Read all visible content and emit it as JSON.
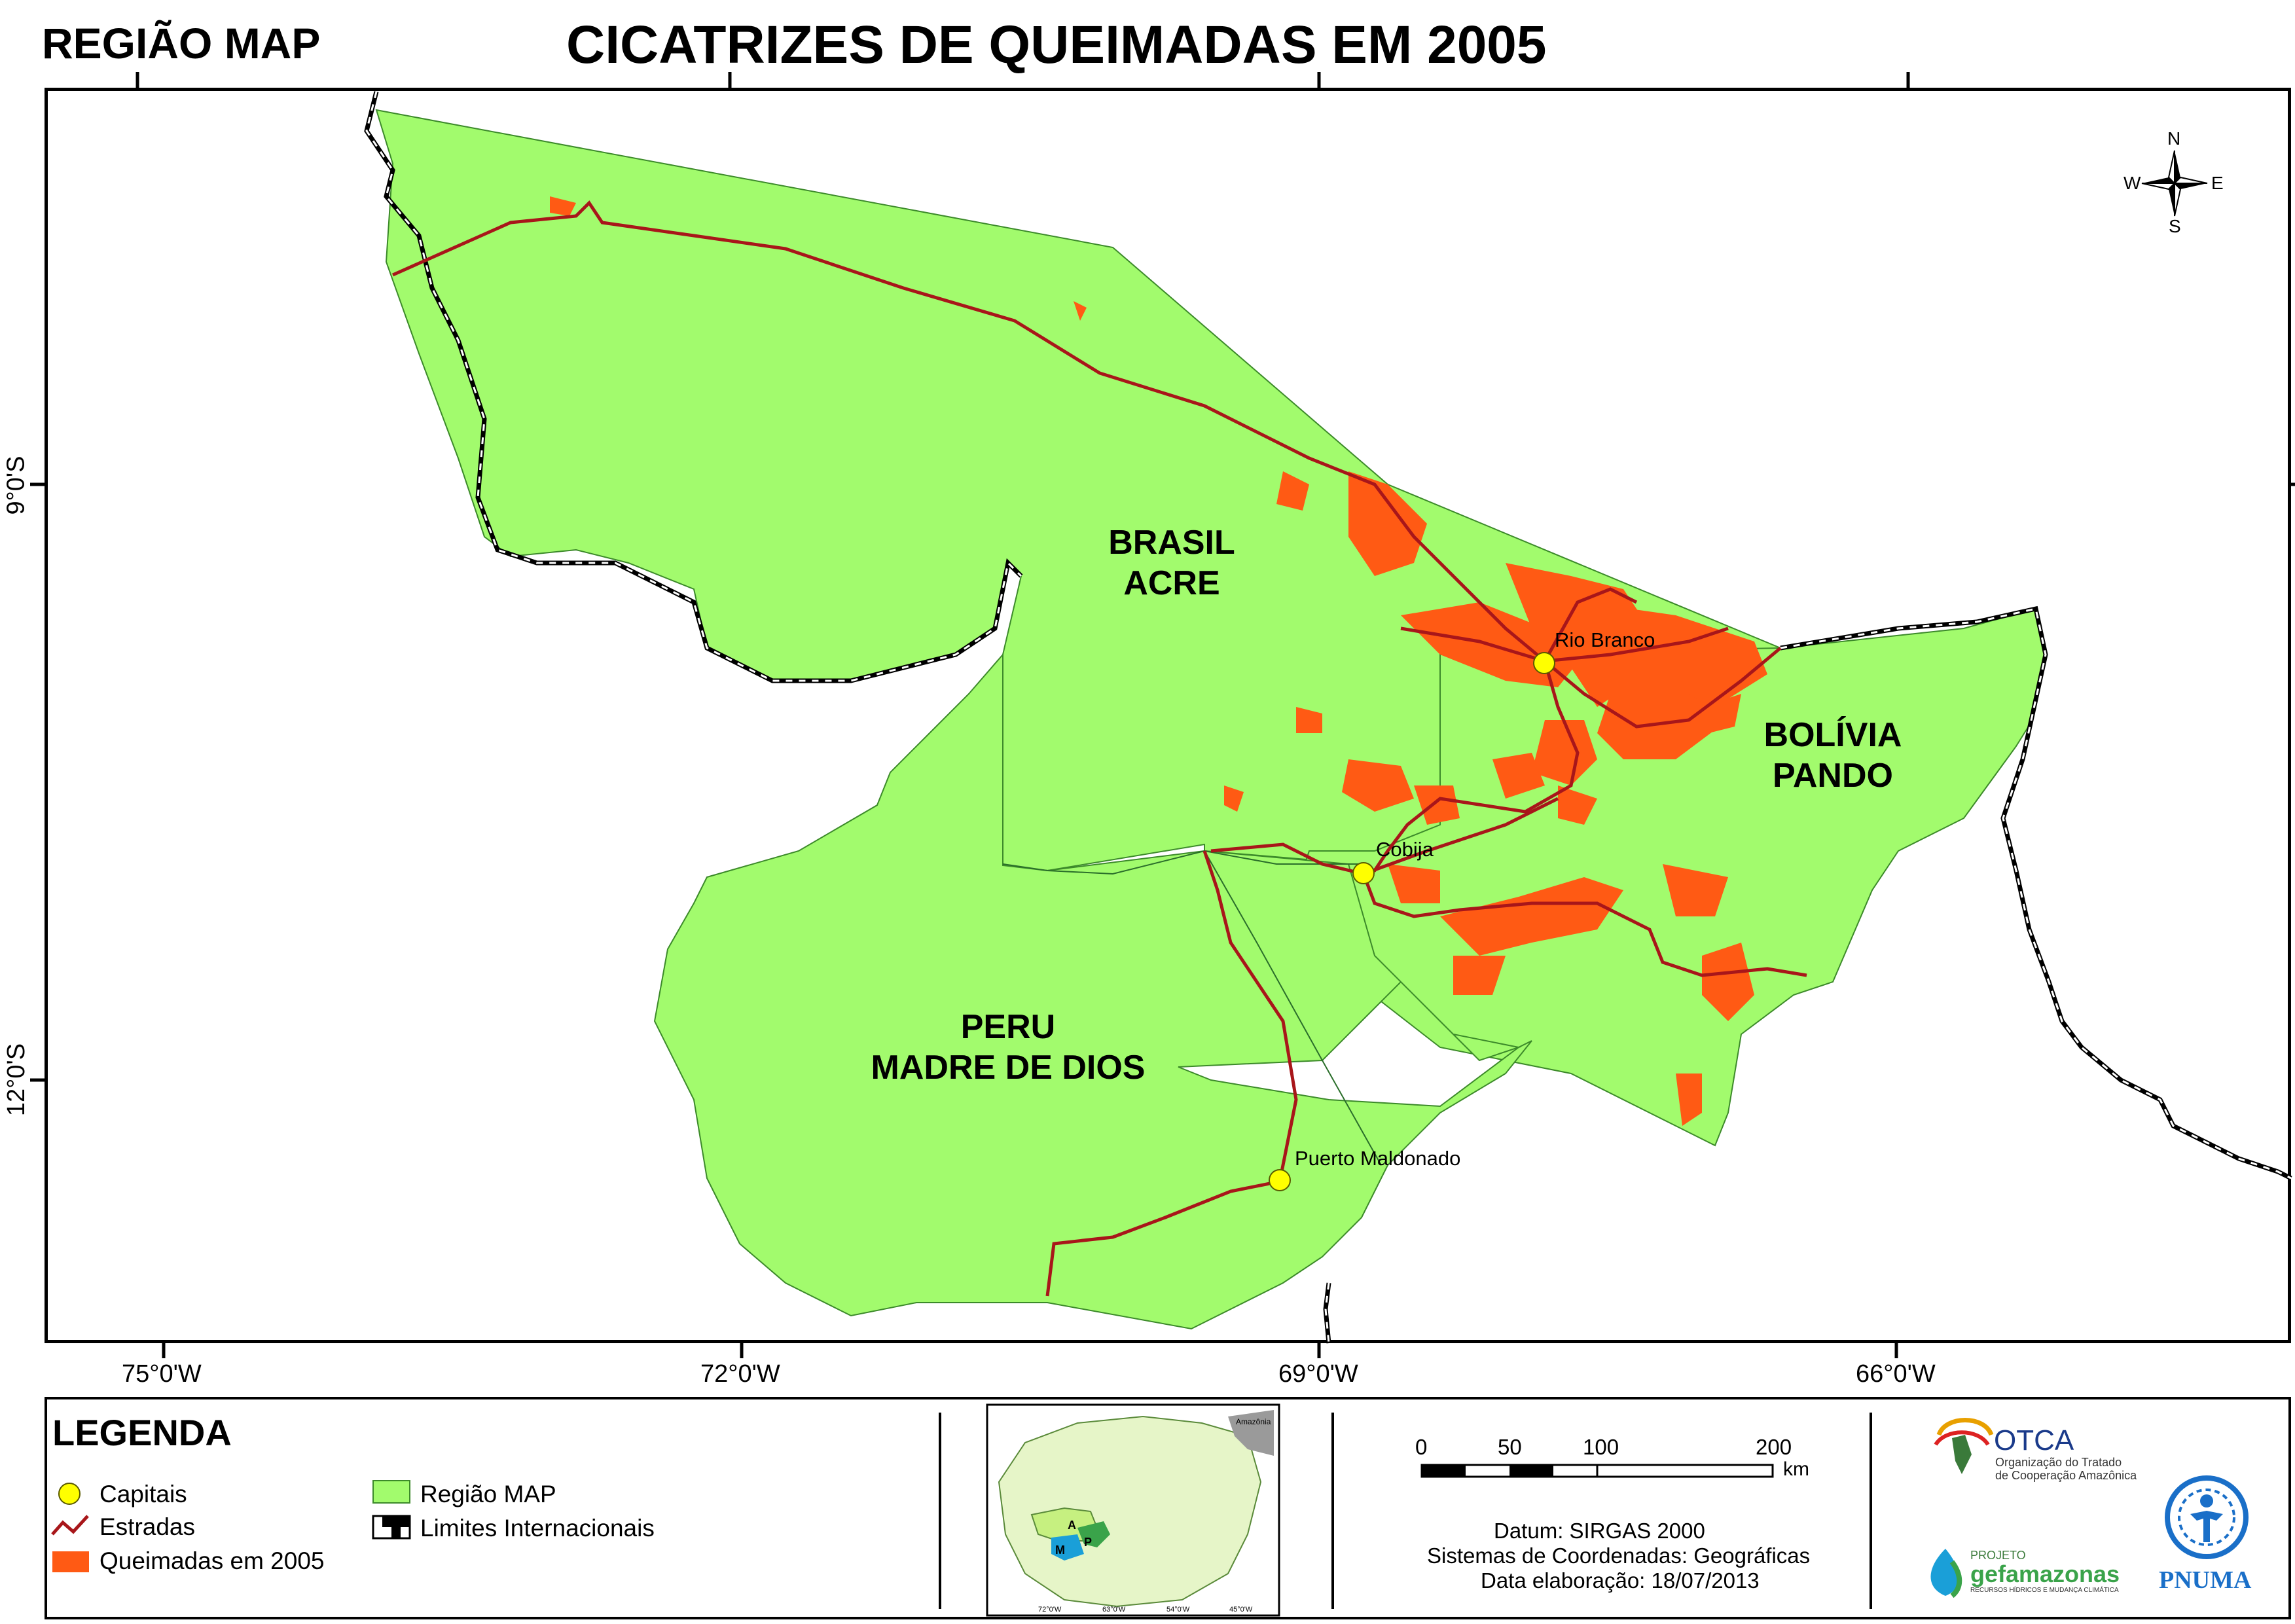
{
  "header": {
    "subtitle": "REGIÃO MAP",
    "title": "CICATRIZES DE QUEIMADAS EM 2005"
  },
  "axes": {
    "longitudes": [
      "75°0'W",
      "72°0'W",
      "69°0'W",
      "66°0'W"
    ],
    "latitudes": [
      "9°0'S",
      "12°0'S"
    ]
  },
  "regions": {
    "acre": [
      "BRASIL",
      "ACRE"
    ],
    "pando": [
      "BOLÍVIA",
      "PANDO"
    ],
    "madre": [
      "PERU",
      "MADRE DE DIOS"
    ]
  },
  "cities": {
    "rio_branco": "Rio Branco",
    "cobija": "Cobija",
    "puerto": "Puerto Maldonado"
  },
  "compass": {
    "n": "N",
    "s": "S",
    "e": "E",
    "w": "W"
  },
  "legend": {
    "title": "LEGENDA",
    "capitais": "Capitais",
    "estradas": "Estradas",
    "queimadas": "Queimadas em 2005",
    "regiao": "Região MAP",
    "limites": "Limites Internacionais"
  },
  "inset": {
    "label": "Amazônia",
    "letters": [
      "A",
      "M",
      "P"
    ],
    "ticks": [
      "72°0'W",
      "63°0'W",
      "54°0'W",
      "45°0'W"
    ]
  },
  "scalebar": {
    "labels": [
      "0",
      "50",
      "100",
      "200"
    ],
    "unit": "km"
  },
  "info": {
    "datum": "Datum: SIRGAS 2000",
    "sistema": "Sistemas de Coordenadas: Geográficas",
    "data": "Data elaboração: 18/07/2013"
  },
  "logos": {
    "otca_name": "OTCA",
    "otca_sub1": "Organização do Tratado",
    "otca_sub2": "de Cooperação Amazônica",
    "gef_pre": "PROJETO",
    "gef_name": "gefamazonas",
    "gef_sub": "RECURSOS HÍDRICOS E MUDANÇA CLIMÁTICA",
    "pnuma": "PNUMA"
  },
  "colors": {
    "region": "#a2fb6d",
    "burn": "#ff5a14",
    "road": "#a8161a",
    "capital": "#ffff00"
  }
}
